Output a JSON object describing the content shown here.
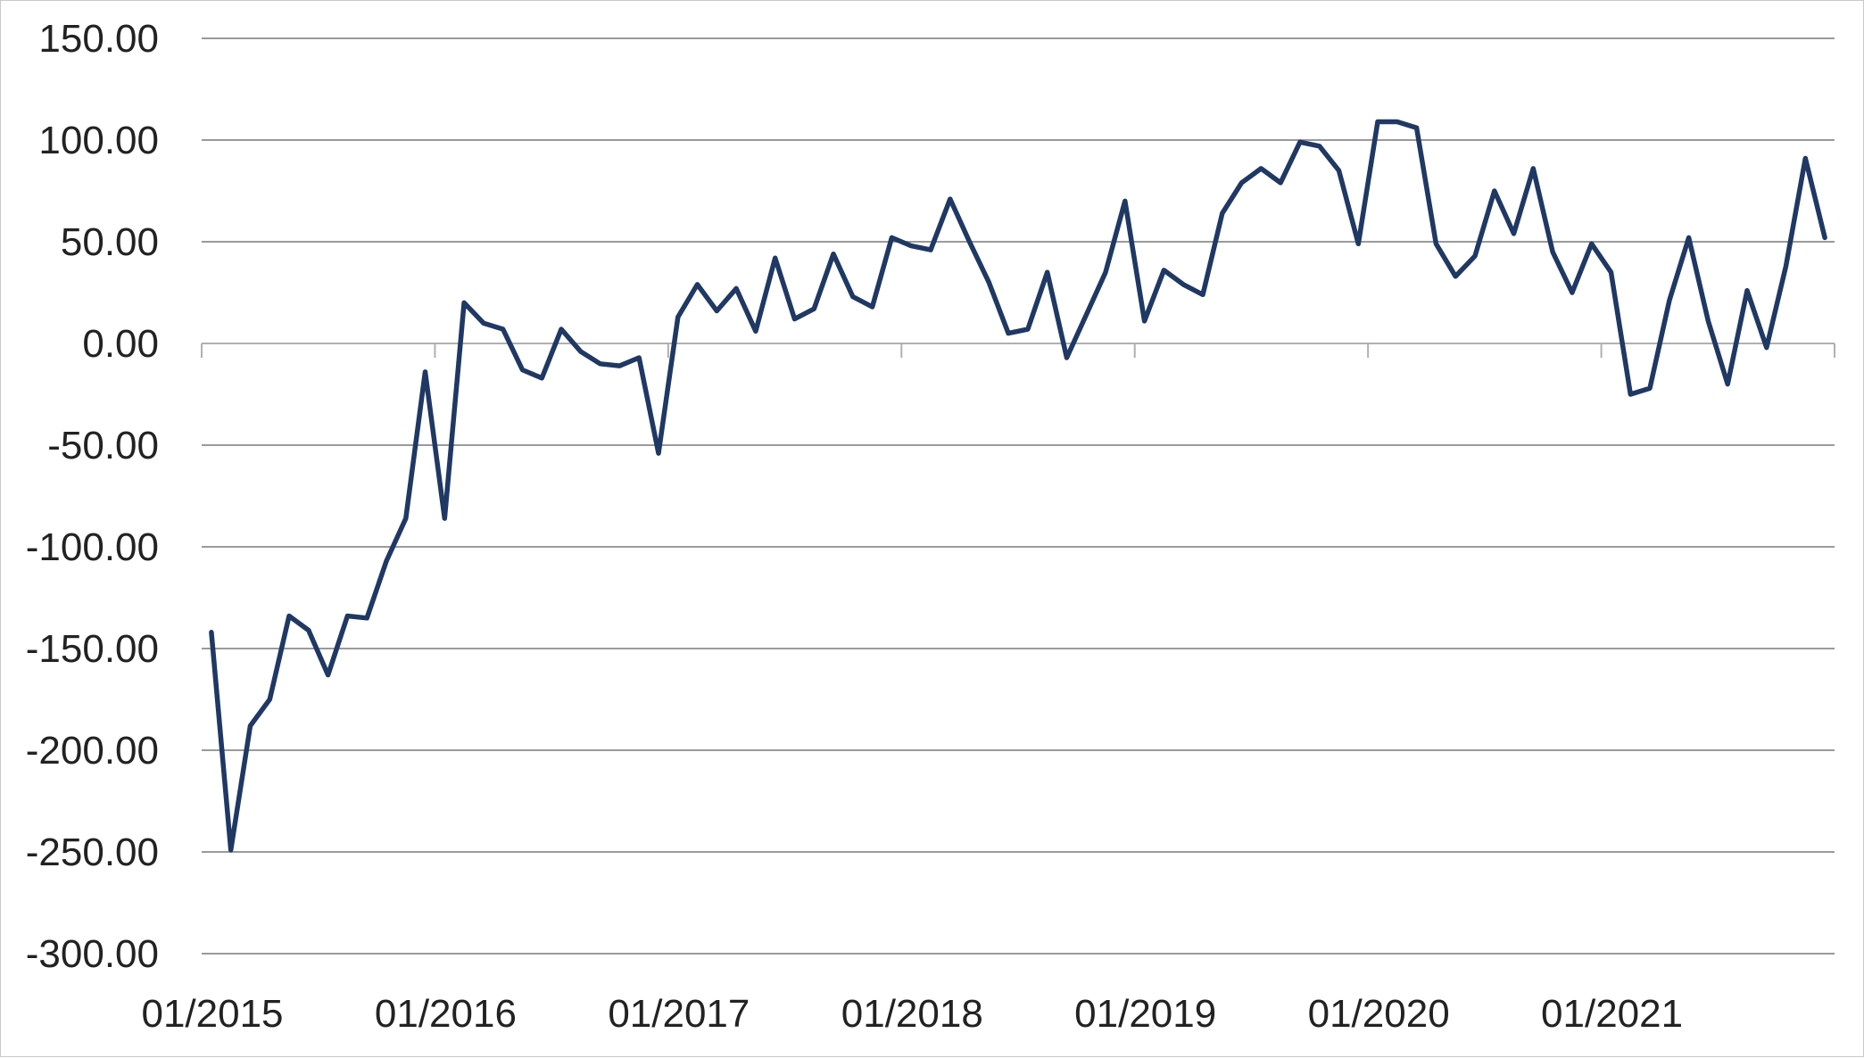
{
  "chart_data": {
    "type": "line",
    "title": "",
    "xlabel": "",
    "ylabel": "",
    "ylim": [
      -300,
      150
    ],
    "y_ticks": [
      150,
      100,
      50,
      0,
      -50,
      -100,
      -150,
      -200,
      -250,
      -300
    ],
    "y_tick_labels": [
      "150.00",
      "100.00",
      "50.00",
      "0.00",
      "-50.00",
      "-100.00",
      "-150.00",
      "-200.00",
      "-250.00",
      "-300.00"
    ],
    "x_tick_labels": [
      "01/2015",
      "01/2016",
      "01/2017",
      "01/2018",
      "01/2019",
      "01/2020",
      "01/2021"
    ],
    "x_range": [
      "01/2015",
      "01/2022"
    ],
    "grid": true,
    "legend": "none",
    "series": [
      {
        "color": "#1f3864",
        "x": [
          "01/2015",
          "02/2015",
          "03/2015",
          "04/2015",
          "05/2015",
          "06/2015",
          "07/2015",
          "08/2015",
          "09/2015",
          "10/2015",
          "11/2015",
          "12/2015",
          "01/2016",
          "02/2016",
          "03/2016",
          "04/2016",
          "05/2016",
          "06/2016",
          "07/2016",
          "08/2016",
          "09/2016",
          "10/2016",
          "11/2016",
          "12/2016",
          "01/2017",
          "02/2017",
          "03/2017",
          "04/2017",
          "05/2017",
          "06/2017",
          "07/2017",
          "08/2017",
          "09/2017",
          "10/2017",
          "11/2017",
          "12/2017",
          "01/2018",
          "02/2018",
          "03/2018",
          "04/2018",
          "05/2018",
          "06/2018",
          "07/2018",
          "08/2018",
          "09/2018",
          "10/2018",
          "11/2018",
          "12/2018",
          "01/2019",
          "02/2019",
          "03/2019",
          "04/2019",
          "05/2019",
          "06/2019",
          "07/2019",
          "08/2019",
          "09/2019",
          "10/2019",
          "11/2019",
          "12/2019",
          "01/2020",
          "02/2020",
          "03/2020",
          "04/2020",
          "05/2020",
          "06/2020",
          "07/2020",
          "08/2020",
          "09/2020",
          "10/2020",
          "11/2020",
          "12/2020",
          "01/2021",
          "02/2021",
          "03/2021",
          "04/2021",
          "05/2021",
          "06/2021",
          "07/2021",
          "08/2021",
          "09/2021",
          "10/2021",
          "11/2021",
          "12/2021"
        ],
        "values": [
          -142,
          -249,
          -188,
          -175,
          -134,
          -141,
          -163,
          -134,
          -135,
          -107,
          -86,
          -14,
          -86,
          20,
          10,
          7,
          -13,
          -17,
          7,
          -4,
          -10,
          -11,
          -7,
          -54,
          13,
          29,
          16,
          27,
          6,
          42,
          12,
          17,
          44,
          23,
          18,
          52,
          48,
          46,
          71,
          50,
          30,
          5,
          7,
          35,
          -7,
          14,
          35,
          70,
          11,
          36,
          29,
          24,
          64,
          79,
          86,
          79,
          99,
          97,
          85,
          49,
          109,
          109,
          106,
          49,
          33,
          43,
          75,
          54,
          86,
          45,
          25,
          49,
          35,
          -25,
          -22,
          21,
          52,
          11,
          -20,
          26,
          -2,
          38,
          91,
          52
        ]
      }
    ]
  }
}
